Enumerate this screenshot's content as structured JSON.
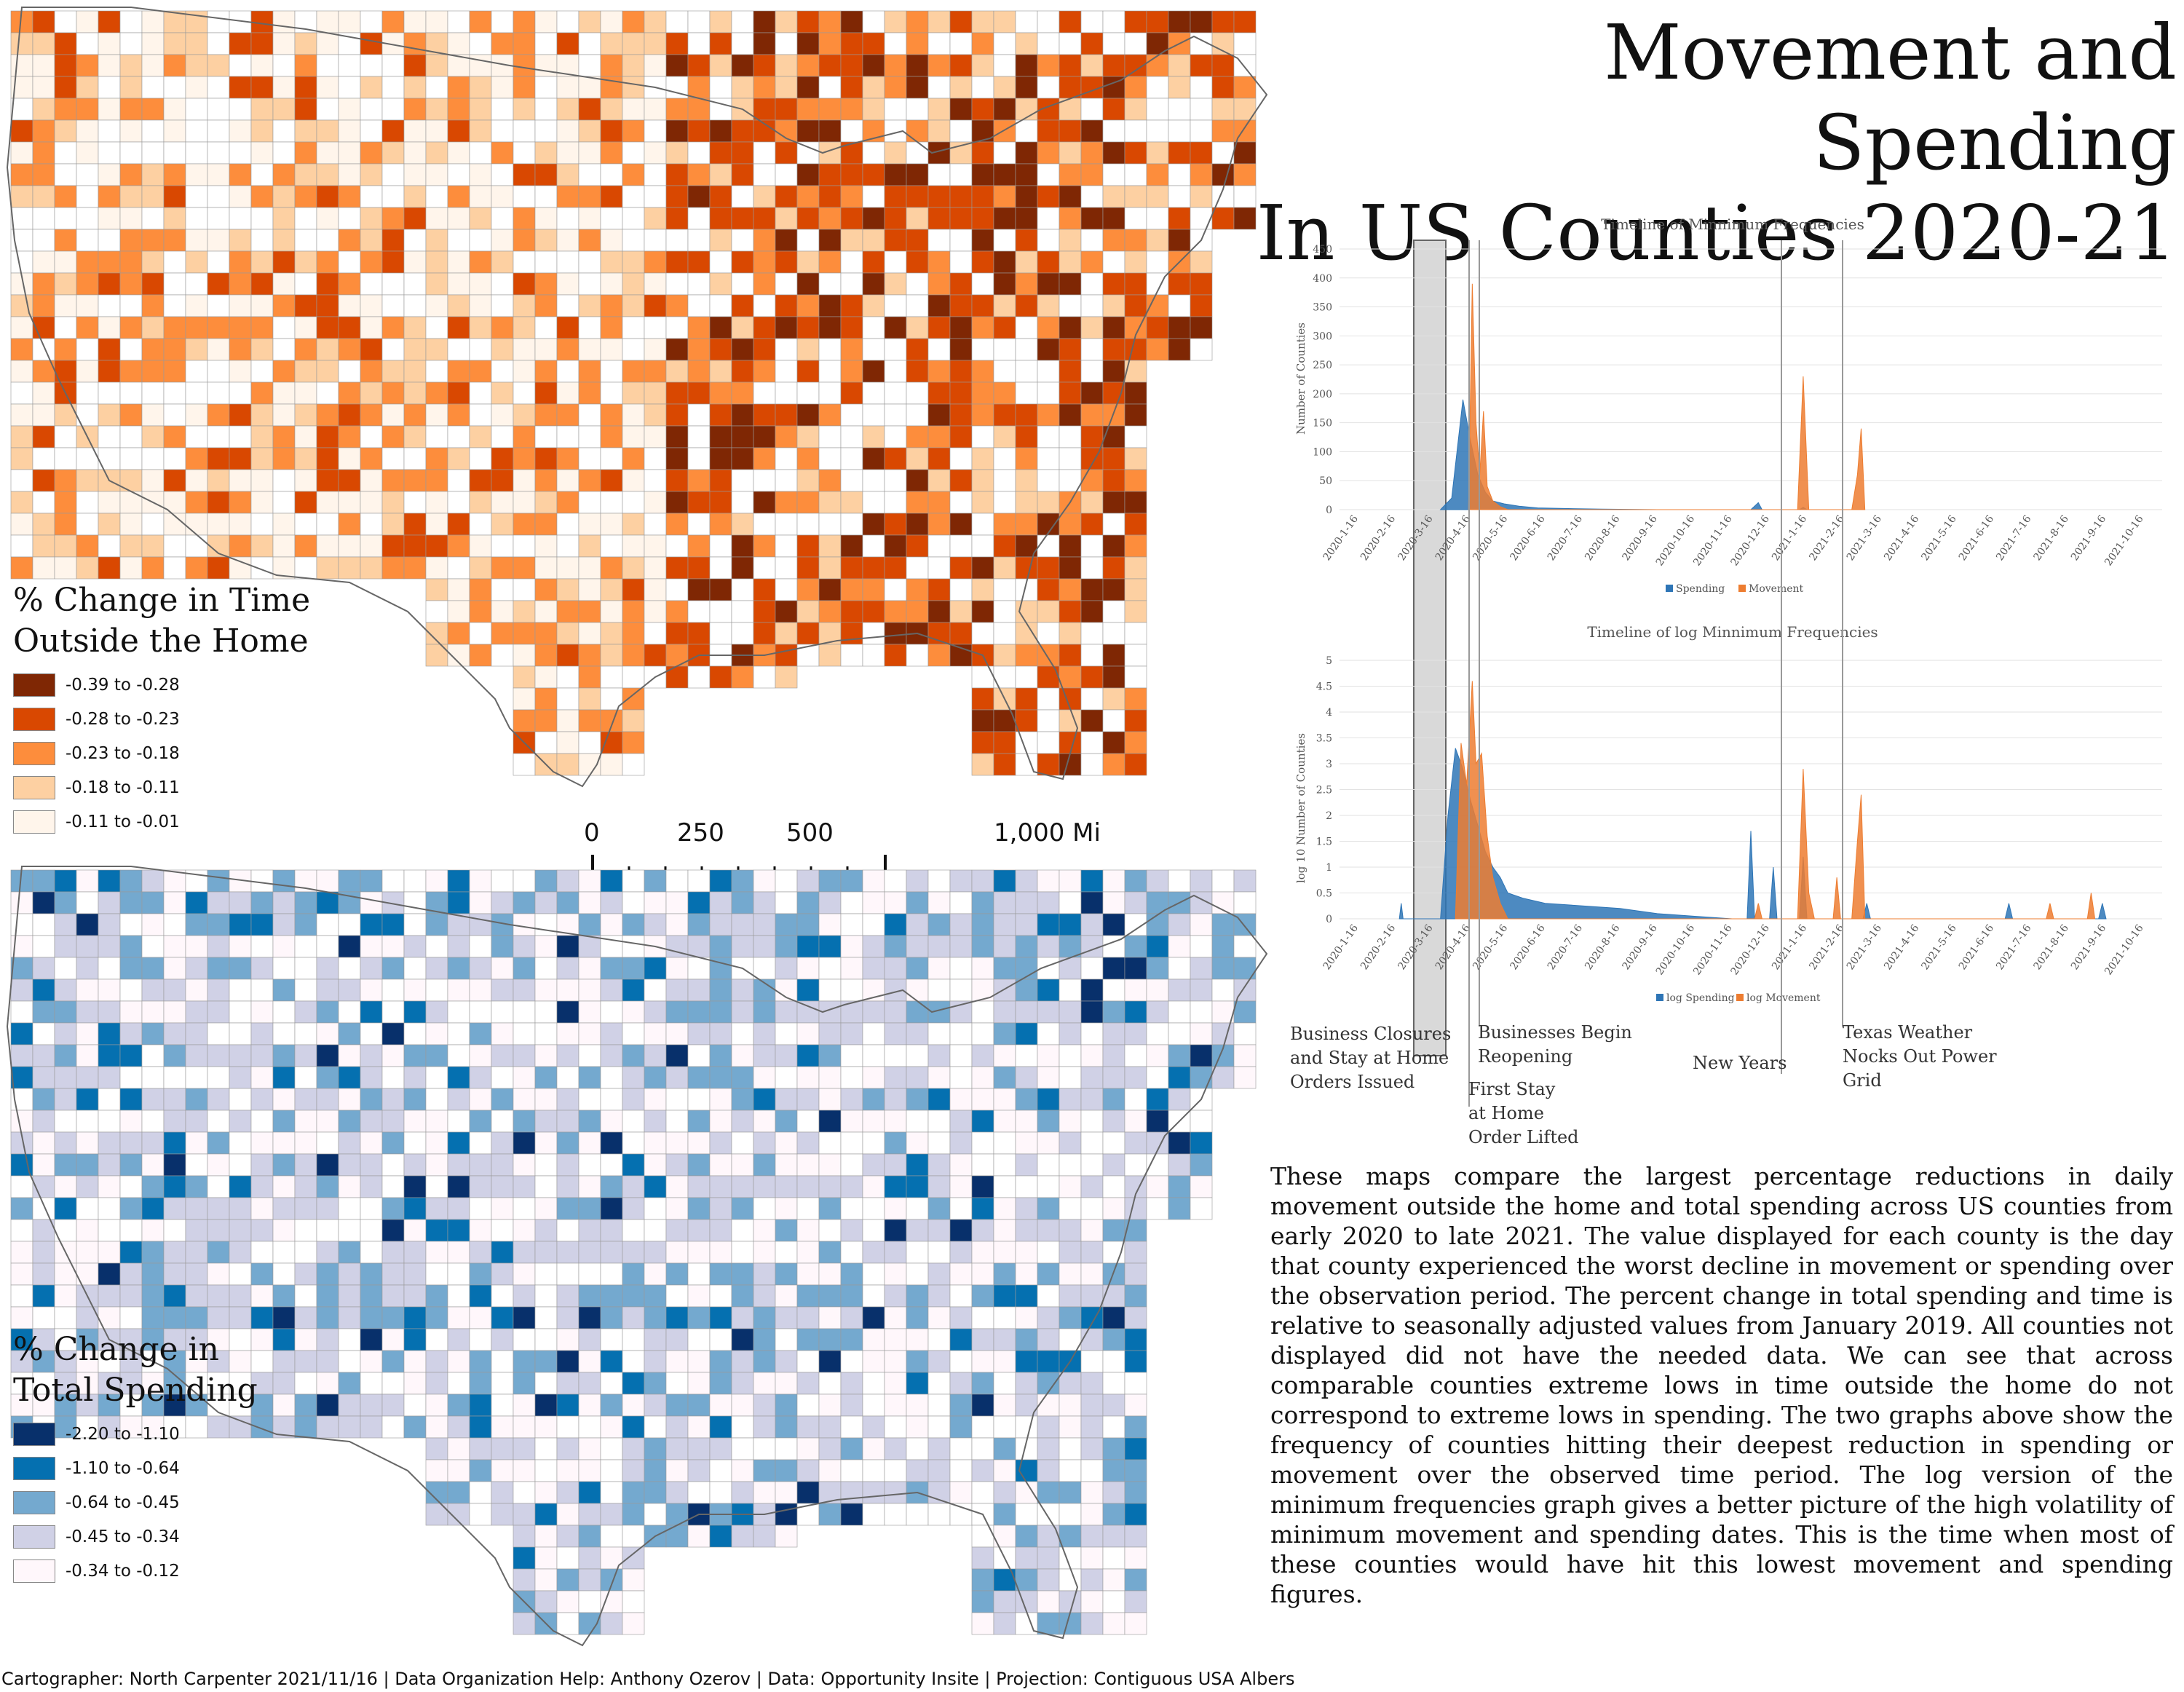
{
  "title": {
    "line1": "Movement and Spending",
    "line2": "In US Counties 2020-21"
  },
  "maps": {
    "movement": {
      "legend_title_line1": "% Change in Time",
      "legend_title_line2": "Outside the Home",
      "classes": [
        {
          "label": "-0.39 to -0.28",
          "color": "#7f2704"
        },
        {
          "label": "-0.28 to -0.23",
          "color": "#d94801"
        },
        {
          "label": "-0.23 to -0.18",
          "color": "#fd8d3c"
        },
        {
          "label": "-0.18 to -0.11",
          "color": "#fdd0a2"
        },
        {
          "label": "-0.11 to -0.01",
          "color": "#fff5eb"
        }
      ]
    },
    "spending": {
      "legend_title_line1": "% Change in",
      "legend_title_line2": "Total Spending",
      "classes": [
        {
          "label": "-2.20 to -1.10",
          "color": "#08306b"
        },
        {
          "label": "-1.10 to -0.64",
          "color": "#0570b0"
        },
        {
          "label": "-0.64 to -0.45",
          "color": "#74a9cf"
        },
        {
          "label": "-0.45 to -0.34",
          "color": "#d0d1e6"
        },
        {
          "label": "-0.34 to -0.12",
          "color": "#fff7fb"
        }
      ]
    }
  },
  "scale_bar": {
    "labels": [
      "0",
      "250",
      "500",
      "1,000 Mi"
    ]
  },
  "chart_data": [
    {
      "type": "area",
      "title": "Timeline of Minnimum Frequencies",
      "ylabel": "Number of Counties",
      "ylim": [
        0,
        450
      ],
      "yticks": [
        0,
        50,
        100,
        150,
        200,
        250,
        300,
        350,
        400,
        450
      ],
      "x_ticks": [
        "2020-1-16",
        "2020-2-16",
        "2020-3-16",
        "2020-4-16",
        "2020-5-16",
        "2020-6-16",
        "2020-7-16",
        "2020-8-16",
        "2020-9-16",
        "2020-10-16",
        "2020-11-16",
        "2020-12-16",
        "2021-1-16",
        "2021-2-16",
        "2021-3-16",
        "2021-4-16",
        "2021-5-16",
        "2021-6-16",
        "2021-7-16",
        "2021-8-16",
        "2021-9-16",
        "2021-10-16"
      ],
      "legend": [
        "Spending",
        "Movement"
      ],
      "series": [
        {
          "name": "Spending",
          "color": "#2e75b6",
          "points": [
            [
              2.2,
              0
            ],
            [
              2.5,
              20
            ],
            [
              2.8,
              190
            ],
            [
              3.0,
              120
            ],
            [
              3.2,
              60
            ],
            [
              3.4,
              30
            ],
            [
              3.6,
              15
            ],
            [
              3.9,
              10
            ],
            [
              4.3,
              6
            ],
            [
              4.8,
              3
            ],
            [
              5.5,
              2
            ],
            [
              6.5,
              1
            ],
            [
              8,
              0
            ],
            [
              10.5,
              0
            ],
            [
              10.7,
              12
            ],
            [
              10.8,
              0
            ],
            [
              11.8,
              0
            ],
            [
              11.9,
              4
            ],
            [
              12,
              0
            ]
          ]
        },
        {
          "name": "Movement",
          "color": "#ed7d31",
          "points": [
            [
              2.95,
              0
            ],
            [
              3.05,
              390
            ],
            [
              3.15,
              150
            ],
            [
              3.25,
              60
            ],
            [
              3.35,
              170
            ],
            [
              3.45,
              40
            ],
            [
              3.6,
              15
            ],
            [
              3.8,
              5
            ],
            [
              4.0,
              0
            ],
            [
              11.75,
              0
            ],
            [
              11.9,
              230
            ],
            [
              12.05,
              0
            ],
            [
              13.2,
              0
            ],
            [
              13.35,
              60
            ],
            [
              13.45,
              140
            ],
            [
              13.55,
              0
            ]
          ]
        }
      ]
    },
    {
      "type": "area",
      "title": "Timeline of log Minnimum Frequencies",
      "ylabel": "log 10 Number of Counties",
      "ylim": [
        0,
        5
      ],
      "yticks": [
        0,
        0.5,
        1,
        1.5,
        2,
        2.5,
        3,
        3.5,
        4,
        4.5,
        5
      ],
      "x_ticks": [
        "2020-1-16",
        "2020-2-16",
        "2020-3-16",
        "2020-4-16",
        "2020-5-16",
        "2020-6-16",
        "2020-7-16",
        "2020-8-16",
        "2020-9-16",
        "2020-10-16",
        "2020-11-16",
        "2020-12-16",
        "2021-1-16",
        "2021-2-16",
        "2021-3-16",
        "2021-4-16",
        "2021-5-16",
        "2021-6-16",
        "2021-7-16",
        "2021-8-16",
        "2021-9-16",
        "2021-10-16"
      ],
      "legend": [
        "log Spending",
        "log Movement"
      ],
      "series": [
        {
          "name": "log Spending",
          "color": "#2e75b6",
          "points": [
            [
              1.1,
              0
            ],
            [
              1.15,
              0.3
            ],
            [
              1.2,
              0
            ],
            [
              2.2,
              0
            ],
            [
              2.4,
              2.0
            ],
            [
              2.6,
              3.3
            ],
            [
              2.8,
              2.9
            ],
            [
              3.0,
              2.3
            ],
            [
              3.2,
              1.8
            ],
            [
              3.4,
              1.3
            ],
            [
              3.6,
              1.0
            ],
            [
              3.8,
              0.8
            ],
            [
              4.0,
              0.5
            ],
            [
              4.4,
              0.4
            ],
            [
              5.0,
              0.3
            ],
            [
              6.0,
              0.25
            ],
            [
              7.0,
              0.2
            ],
            [
              8.0,
              0.1
            ],
            [
              9.0,
              0.05
            ],
            [
              10.0,
              0
            ],
            [
              10.4,
              0
            ],
            [
              10.5,
              1.7
            ],
            [
              10.6,
              0
            ],
            [
              11.0,
              0
            ],
            [
              11.1,
              1.0
            ],
            [
              11.2,
              0
            ],
            [
              11.8,
              0
            ],
            [
              11.9,
              1.2
            ],
            [
              12.0,
              0
            ],
            [
              13.5,
              0
            ],
            [
              13.6,
              0.3
            ],
            [
              13.7,
              0
            ],
            [
              17.3,
              0
            ],
            [
              17.4,
              0.3
            ],
            [
              17.5,
              0
            ],
            [
              19.8,
              0
            ],
            [
              19.9,
              0.3
            ],
            [
              20.0,
              0
            ]
          ]
        },
        {
          "name": "log Movement",
          "color": "#ed7d31",
          "points": [
            [
              2.6,
              0
            ],
            [
              2.75,
              3.4
            ],
            [
              2.9,
              2.6
            ],
            [
              3.05,
              4.6
            ],
            [
              3.15,
              3.0
            ],
            [
              3.3,
              3.2
            ],
            [
              3.45,
              1.6
            ],
            [
              3.6,
              0.8
            ],
            [
              3.8,
              0.3
            ],
            [
              4.0,
              0
            ],
            [
              10.6,
              0
            ],
            [
              10.7,
              0.3
            ],
            [
              10.8,
              0
            ],
            [
              11.75,
              0
            ],
            [
              11.9,
              2.9
            ],
            [
              12.05,
              0.5
            ],
            [
              12.2,
              0
            ],
            [
              12.7,
              0
            ],
            [
              12.8,
              0.8
            ],
            [
              12.9,
              0
            ],
            [
              13.2,
              0
            ],
            [
              13.35,
              1.5
            ],
            [
              13.45,
              2.4
            ],
            [
              13.55,
              0
            ],
            [
              18.4,
              0
            ],
            [
              18.5,
              0.3
            ],
            [
              18.6,
              0
            ],
            [
              19.5,
              0
            ],
            [
              19.6,
              0.5
            ],
            [
              19.7,
              0
            ]
          ]
        }
      ]
    }
  ],
  "annotations": {
    "shaded_label_1": "Business Closures",
    "shaded_label_2": "and Stay at Home",
    "shaded_label_3": "Orders Issued",
    "first_stay_1": "First Stay",
    "first_stay_2": "at Home",
    "first_stay_3": "Order Lifted",
    "reopen_1": "Businesses Begin",
    "reopen_2": "Reopening",
    "new_years": "New Years",
    "texas_1": "Texas Weather",
    "texas_2": "Nocks Out Power",
    "texas_3": "Grid"
  },
  "paragraph": "These maps compare the largest percentage reductions in daily movement outside the home and total spending across US counties from early 2020 to late 2021. The value displayed for each county is the day that county experienced the worst decline in movement or spending over the observation period. The percent change in total spending and time is relative to seasonally adjusted values from January 2019. All counties not displayed did not have the needed data. We can see that across comparable counties extreme lows in time outside the home do not correspond to extreme lows in spending. The two graphs above show the frequency of counties hitting their deepest reduction in spending or movement over the observed time period. The log version of the minimum frequencies graph gives a better picture of the high volatility of minimum movement and spending dates. This is the time when most of these counties would have hit this lowest movement and spending figures.",
  "footer": "Cartographer: North Carpenter 2021/11/16 | Data Organization Help: Anthony Ozerov | Data: Opportunity Insite | Projection: Contiguous USA Albers"
}
